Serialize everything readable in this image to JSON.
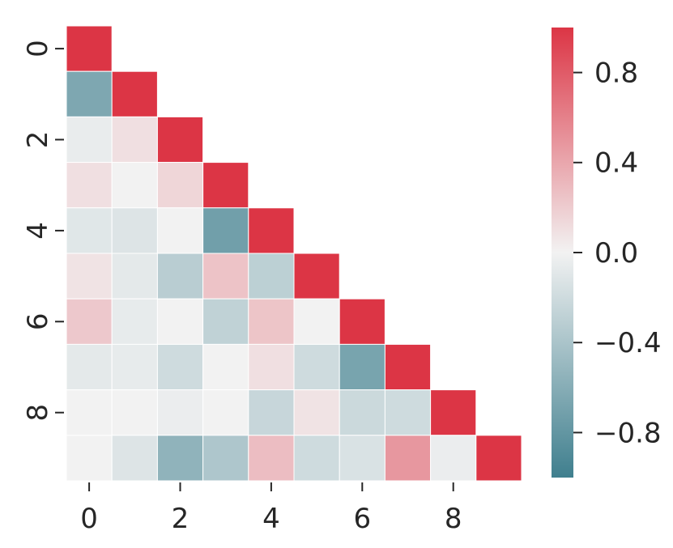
{
  "chart_data": {
    "type": "heatmap",
    "title": "",
    "xlabel": "",
    "ylabel": "",
    "mask": "upper-triangle",
    "x_tick_labels": [
      "0",
      "2",
      "4",
      "6",
      "8"
    ],
    "x_tick_indices": [
      0,
      2,
      4,
      6,
      8
    ],
    "y_tick_labels": [
      "0",
      "2",
      "4",
      "6",
      "8"
    ],
    "y_tick_indices": [
      0,
      2,
      4,
      6,
      8
    ],
    "rows": [
      [
        1.0
      ],
      [
        -0.65,
        1.0
      ],
      [
        -0.05,
        0.1,
        1.0
      ],
      [
        0.1,
        0.0,
        0.15,
        1.0
      ],
      [
        -0.1,
        -0.12,
        0.0,
        -0.72,
        1.0
      ],
      [
        0.08,
        -0.08,
        -0.32,
        0.25,
        -0.3,
        1.0
      ],
      [
        0.22,
        -0.06,
        0.0,
        -0.28,
        0.24,
        0.0,
        1.0
      ],
      [
        -0.08,
        -0.06,
        -0.2,
        0.0,
        0.1,
        -0.2,
        -0.68,
        1.0
      ],
      [
        0.0,
        0.0,
        -0.04,
        0.0,
        -0.24,
        0.08,
        -0.22,
        -0.2,
        1.0
      ],
      [
        0.0,
        -0.12,
        -0.55,
        -0.38,
        0.28,
        -0.2,
        -0.14,
        0.48,
        -0.04,
        1.0
      ]
    ],
    "colorbar": {
      "vmin": -1.0,
      "vmax": 1.0,
      "tick_values": [
        0.8,
        0.4,
        0.0,
        -0.4,
        -0.8
      ],
      "tick_labels": [
        "0.8",
        "0.4",
        "0.0",
        "−0.4",
        "−0.8"
      ]
    },
    "colors": {
      "negative": "#3f7f8e",
      "center": "#f2f2f2",
      "positive": "#dc3545",
      "cell_border": "#ffffff",
      "text": "#262626"
    }
  }
}
